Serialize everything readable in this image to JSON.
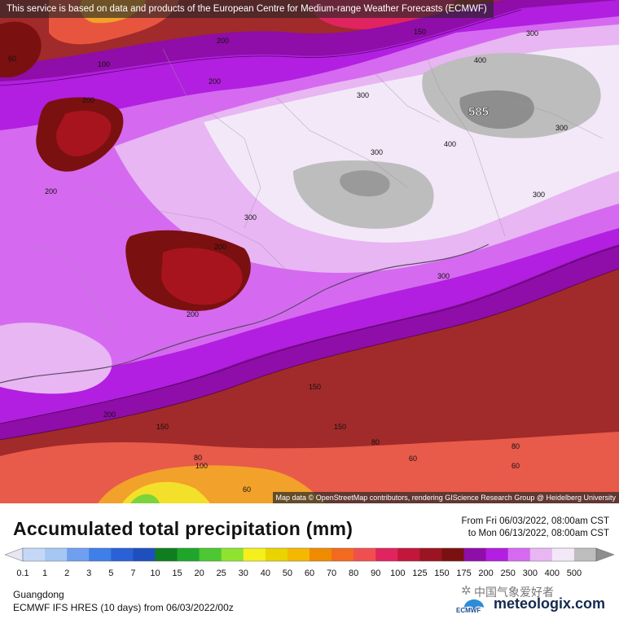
{
  "notice": "This service is based on data and products of the European Centre for Medium-range Weather Forecasts (ECMWF)",
  "attribution": "Map data © OpenStreetMap contributors, rendering GIScience Research Group @ Heidelberg University",
  "title": "Accumulated total precipitation (mm)",
  "valid_from": "From Fri 06/03/2022, 08:00am CST",
  "valid_to": "to Mon 06/13/2022, 08:00am CST",
  "region": "Guangdong",
  "model": "ECMWF IFS HRES (10 days) from 06/03/2022/00z",
  "watermark_cn": "中国气象爱好者",
  "brand": "meteologix.com",
  "provider": "ECMWF",
  "colorbar": {
    "labels": [
      "0.1",
      "1",
      "2",
      "3",
      "5",
      "7",
      "10",
      "15",
      "20",
      "25",
      "30",
      "40",
      "50",
      "60",
      "70",
      "80",
      "90",
      "100",
      "125",
      "150",
      "175",
      "200",
      "250",
      "300",
      "400",
      "500"
    ],
    "colors": [
      "#e6e6f5",
      "#c4d8f6",
      "#a5c7f3",
      "#6f9ff0",
      "#3f7fe8",
      "#2a61d6",
      "#1f4fbf",
      "#0f7e1f",
      "#1fa62a",
      "#4cc832",
      "#8fe32e",
      "#f3f01e",
      "#e9d400",
      "#f5b700",
      "#ef8b00",
      "#f26a1f",
      "#f04f4f",
      "#e0245f",
      "#c2163a",
      "#9a1421",
      "#7b1010",
      "#8f0da8",
      "#b21fe0",
      "#d56af0",
      "#e8b6f3",
      "#f3e8f8",
      "#bdbdbd",
      "#8e8e8e"
    ]
  },
  "map": {
    "contour_labels": [
      "300",
      "300",
      "300",
      "300",
      "300",
      "300",
      "300",
      "400",
      "400",
      "200",
      "200",
      "200",
      "200",
      "200",
      "200",
      "200",
      "150",
      "150",
      "150",
      "150",
      "100",
      "100",
      "80",
      "80",
      "80",
      "60",
      "60",
      "60",
      "60"
    ],
    "max_label": "585"
  },
  "colors": {
    "background": "#ffffff",
    "notice_bg": "#3a3a3a",
    "brand": "#142a4e"
  }
}
